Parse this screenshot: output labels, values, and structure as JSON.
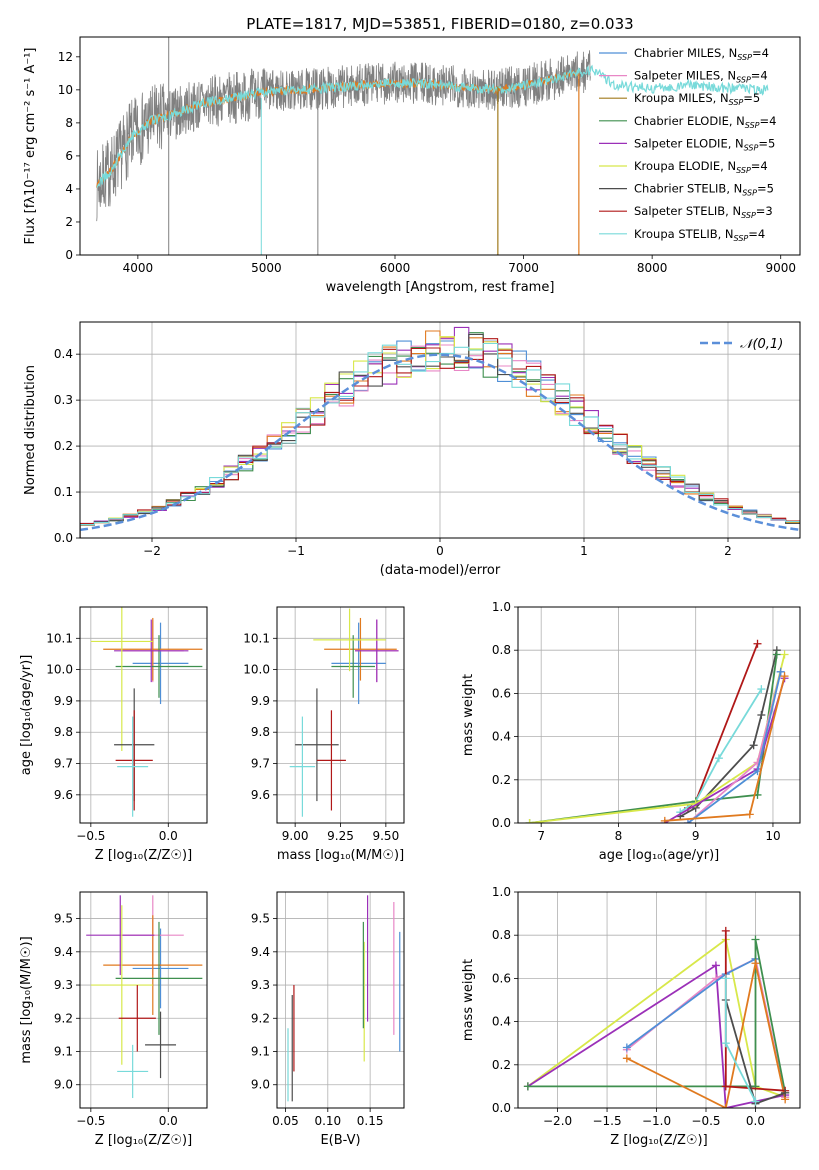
{
  "figure_title": "PLATE=1817, MJD=53851, FIBERID=0180, z=0.033",
  "colors": {
    "chabrier_miles": "#4f8fd6",
    "salpeter_miles": "#e887c6",
    "kroupa_miles": "#a07a1c",
    "chabrier_elodie": "#3f8f4f",
    "salpeter_elodie": "#9b30b8",
    "kroupa_elodie": "#d8e84a",
    "chabrier_stelib": "#4d4d4d",
    "salpeter_stelib": "#b01818",
    "kroupa_stelib": "#78dada",
    "orange": "#e07a1f",
    "lime": "#c8e84a",
    "data_grey": "#808080",
    "gauss": "#5b8fd9"
  },
  "chart_data": [
    {
      "type": "line",
      "title": "PLATE=1817, MJD=53851, FIBERID=0180, z=0.033",
      "xlabel": "wavelength [Angstrom, rest frame]",
      "ylabel": "Flux [fλ10⁻¹⁷ erg cm⁻² s⁻¹ A⁻¹]",
      "xlim": [
        3550,
        9150
      ],
      "ylim": [
        0,
        13.2
      ],
      "xticks": [
        "4000",
        "5000",
        "6000",
        "7000",
        "8000",
        "9000"
      ],
      "yticks": [
        "0",
        "2",
        "4",
        "6",
        "8",
        "10",
        "12"
      ],
      "legend_position": "top-right",
      "legend": [
        {
          "label": "Chabrier MILES, N",
          "sub": "SSP",
          "tail": "=4"
        },
        {
          "label": "Salpeter MILES, N",
          "sub": "SSP",
          "tail": "=4"
        },
        {
          "label": "Kroupa MILES, N",
          "sub": "SSP",
          "tail": "=5"
        },
        {
          "label": "Chabrier ELODIE, N",
          "sub": "SSP",
          "tail": "=4"
        },
        {
          "label": "Salpeter ELODIE, N",
          "sub": "SSP",
          "tail": "=5"
        },
        {
          "label": "Kroupa ELODIE, N",
          "sub": "SSP",
          "tail": "=4"
        },
        {
          "label": "Chabrier STELIB, N",
          "sub": "SSP",
          "tail": "=5"
        },
        {
          "label": "Salpeter STELIB, N",
          "sub": "SSP",
          "tail": "=3"
        },
        {
          "label": "Kroupa STELIB, N",
          "sub": "SSP",
          "tail": "=4"
        }
      ],
      "continuum": [
        [
          3680,
          4.2
        ],
        [
          3800,
          5.2
        ],
        [
          3950,
          7.2
        ],
        [
          4100,
          8.1
        ],
        [
          4300,
          8.6
        ],
        [
          4500,
          9.2
        ],
        [
          4800,
          9.6
        ],
        [
          5000,
          9.9
        ],
        [
          5300,
          10.0
        ],
        [
          5600,
          10.2
        ],
        [
          5900,
          10.4
        ],
        [
          6200,
          10.4
        ],
        [
          6500,
          10.2
        ],
        [
          6800,
          10.0
        ],
        [
          7100,
          10.4
        ],
        [
          7400,
          11.0
        ],
        [
          7550,
          11.2
        ],
        [
          7700,
          10.3
        ],
        [
          8000,
          10.1
        ],
        [
          8300,
          10.3
        ],
        [
          8600,
          10.1
        ],
        [
          8900,
          10.0
        ],
        [
          9100,
          10.1
        ]
      ],
      "model_extent": {
        "data_end": 7520,
        "models_end": 8900,
        "stelib_end": 7430,
        "elodie_end": 6800
      },
      "notable_features": [
        {
          "name": "sharp drop",
          "x": 4960
        },
        {
          "name": "sharp drop",
          "x": 5400
        },
        {
          "name": "spike",
          "x": 4240
        }
      ]
    },
    {
      "type": "histogram",
      "xlabel": "(data-model)/error",
      "ylabel": "Normed distribution",
      "xlim": [
        -2.5,
        2.5
      ],
      "ylim": [
        0,
        0.47
      ],
      "xticks": [
        "−2",
        "−1",
        "0",
        "1",
        "2"
      ],
      "yticks": [
        "0.0",
        "0.1",
        "0.2",
        "0.3",
        "0.4"
      ],
      "legend_position": "top-right",
      "legend_label": "𝒩(0,1)",
      "reference_curve": {
        "name": "𝒩(0,1)",
        "mean": 0,
        "sigma": 1
      },
      "bin_width": 0.1,
      "bin_start": -2.5
    },
    {
      "type": "errorbar",
      "xlabel": "Z [log₁₀(Z/Z☉)]",
      "ylabel": "age  [log₁₀(age/yr)]",
      "xlim": [
        -0.57,
        0.25
      ],
      "ylim": [
        9.51,
        10.2
      ],
      "xticks": [
        "−0.5",
        "0.0"
      ],
      "yticks": [
        "9.6",
        "9.7",
        "9.8",
        "9.9",
        "10.0",
        "10.1"
      ],
      "points": [
        {
          "model": "chabrier_miles",
          "x": -0.05,
          "y": 10.02,
          "xerr": 0.18,
          "yerr": 0.13
        },
        {
          "model": "salpeter_miles",
          "x": -0.1,
          "y": 10.06,
          "xerr": 0.2,
          "yerr": 0.1
        },
        {
          "model": "orange",
          "x": -0.1,
          "y": 10.065,
          "xerr": 0.32,
          "yerr": 0.1
        },
        {
          "model": "chabrier_elodie",
          "x": -0.06,
          "y": 10.01,
          "xerr": 0.28,
          "yerr": 0.1
        },
        {
          "model": "salpeter_elodie",
          "x": -0.11,
          "y": 10.06,
          "xerr": 0.24,
          "yerr": 0.1
        },
        {
          "model": "kroupa_elodie",
          "x": -0.3,
          "y": 10.09,
          "xerr": 0.2,
          "yerr": 0.35
        },
        {
          "model": "chabrier_stelib",
          "x": -0.22,
          "y": 9.76,
          "xerr": 0.13,
          "yerr": 0.18
        },
        {
          "model": "salpeter_stelib",
          "x": -0.22,
          "y": 9.71,
          "xerr": 0.12,
          "yerr": 0.16
        },
        {
          "model": "kroupa_stelib",
          "x": -0.23,
          "y": 9.69,
          "xerr": 0.1,
          "yerr": 0.16
        }
      ]
    },
    {
      "type": "errorbar",
      "xlabel": "mass [log₁₀(M/M☉)]",
      "ylabel": "",
      "xlim": [
        8.9,
        9.6
      ],
      "ylim": [
        9.51,
        10.2
      ],
      "xticks": [
        "9.00",
        "9.25",
        "9.50"
      ],
      "yticks": [
        "9.6",
        "9.7",
        "9.8",
        "9.9",
        "10.0",
        "10.1"
      ],
      "points": [
        {
          "model": "chabrier_miles",
          "x": 9.35,
          "y": 10.02,
          "xerr": 0.15,
          "yerr": 0.13
        },
        {
          "model": "salpeter_miles",
          "x": 9.45,
          "y": 10.06,
          "xerr": 0.12,
          "yerr": 0.1
        },
        {
          "model": "orange",
          "x": 9.36,
          "y": 10.065,
          "xerr": 0.2,
          "yerr": 0.1
        },
        {
          "model": "chabrier_elodie",
          "x": 9.32,
          "y": 10.01,
          "xerr": 0.12,
          "yerr": 0.1
        },
        {
          "model": "salpeter_elodie",
          "x": 9.45,
          "y": 10.06,
          "xerr": 0.12,
          "yerr": 0.1
        },
        {
          "model": "kroupa_elodie",
          "x": 9.3,
          "y": 10.095,
          "xerr": 0.2,
          "yerr": 0.1
        },
        {
          "model": "chabrier_stelib",
          "x": 9.12,
          "y": 9.76,
          "xerr": 0.12,
          "yerr": 0.18
        },
        {
          "model": "salpeter_stelib",
          "x": 9.2,
          "y": 9.71,
          "xerr": 0.08,
          "yerr": 0.16
        },
        {
          "model": "kroupa_stelib",
          "x": 9.04,
          "y": 9.69,
          "xerr": 0.07,
          "yerr": 0.16
        }
      ]
    },
    {
      "type": "line",
      "xlabel": "age  [log₁₀(age/yr)]",
      "ylabel": "mass weight",
      "xlim": [
        6.7,
        10.35
      ],
      "ylim": [
        0,
        1.0
      ],
      "xticks": [
        "7",
        "8",
        "9",
        "10"
      ],
      "yticks": [
        "0.0",
        "0.2",
        "0.4",
        "0.6",
        "0.8",
        "1.0"
      ],
      "series": [
        {
          "model": "salpeter_stelib",
          "x": [
            8.9,
            9.0,
            9.8
          ],
          "y": [
            0.07,
            0.1,
            0.83
          ]
        },
        {
          "model": "kroupa_stelib",
          "x": [
            8.8,
            9.0,
            9.3,
            9.85
          ],
          "y": [
            0.05,
            0.1,
            0.3,
            0.62
          ]
        },
        {
          "model": "chabrier_stelib",
          "x": [
            8.8,
            9.0,
            9.75,
            9.85,
            10.05
          ],
          "y": [
            0.03,
            0.07,
            0.36,
            0.5,
            0.8
          ]
        },
        {
          "model": "chabrier_elodie",
          "x": [
            6.85,
            9.0,
            9.8,
            10.05
          ],
          "y": [
            0.0,
            0.1,
            0.13,
            0.78
          ]
        },
        {
          "model": "kroupa_elodie",
          "x": [
            6.85,
            9.0,
            9.8,
            10.15
          ],
          "y": [
            0.0,
            0.09,
            0.28,
            0.78
          ]
        },
        {
          "model": "salpeter_elodie",
          "x": [
            8.6,
            9.8,
            10.15
          ],
          "y": [
            0.0,
            0.25,
            0.67
          ]
        },
        {
          "model": "salpeter_miles",
          "x": [
            8.9,
            9.8,
            10.1
          ],
          "y": [
            0.0,
            0.28,
            0.7
          ]
        },
        {
          "model": "chabrier_miles",
          "x": [
            8.9,
            9.8,
            10.1
          ],
          "y": [
            0.0,
            0.24,
            0.7
          ]
        },
        {
          "model": "orange",
          "x": [
            8.6,
            9.7,
            10.15
          ],
          "y": [
            0.01,
            0.04,
            0.68
          ]
        }
      ]
    },
    {
      "type": "errorbar",
      "xlabel": "Z [log₁₀(Z/Z☉)]",
      "ylabel": "mass [log₁₀(M/M☉)]",
      "xlim": [
        -0.57,
        0.25
      ],
      "ylim": [
        8.93,
        9.58
      ],
      "xticks": [
        "−0.5",
        "0.0"
      ],
      "yticks": [
        "9.0",
        "9.1",
        "9.2",
        "9.3",
        "9.4",
        "9.5"
      ],
      "points": [
        {
          "model": "chabrier_miles",
          "x": -0.05,
          "y": 9.35,
          "xerr": 0.18,
          "yerr": 0.12
        },
        {
          "model": "salpeter_miles",
          "x": -0.1,
          "y": 9.45,
          "xerr": 0.2,
          "yerr": 0.12
        },
        {
          "model": "orange",
          "x": -0.1,
          "y": 9.36,
          "xerr": 0.32,
          "yerr": 0.15
        },
        {
          "model": "chabrier_elodie",
          "x": -0.06,
          "y": 9.32,
          "xerr": 0.28,
          "yerr": 0.17
        },
        {
          "model": "salpeter_elodie",
          "x": -0.31,
          "y": 9.45,
          "xerr": 0.22,
          "yerr": 0.12
        },
        {
          "model": "kroupa_elodie",
          "x": -0.3,
          "y": 9.3,
          "xerr": 0.2,
          "yerr": 0.24
        },
        {
          "model": "chabrier_stelib",
          "x": -0.05,
          "y": 9.12,
          "xerr": 0.1,
          "yerr": 0.1
        },
        {
          "model": "salpeter_stelib",
          "x": -0.2,
          "y": 9.2,
          "xerr": 0.12,
          "yerr": 0.1
        },
        {
          "model": "kroupa_stelib",
          "x": -0.23,
          "y": 9.04,
          "xerr": 0.1,
          "yerr": 0.08
        }
      ]
    },
    {
      "type": "errorbar",
      "xlabel": "E(B-V)",
      "ylabel": "",
      "xlim": [
        0.04,
        0.19
      ],
      "ylim": [
        8.93,
        9.58
      ],
      "xticks": [
        "0.05",
        "0.10",
        "0.15"
      ],
      "yticks": [
        "9.0",
        "9.1",
        "9.2",
        "9.3",
        "9.4",
        "9.5"
      ],
      "points": [
        {
          "model": "chabrier_miles",
          "x": 0.185,
          "y": 9.28,
          "yerr": 0.18
        },
        {
          "model": "salpeter_miles",
          "x": 0.178,
          "y": 9.35,
          "yerr": 0.2
        },
        {
          "model": "salpeter_elodie",
          "x": 0.147,
          "y": 9.38,
          "yerr": 0.19
        },
        {
          "model": "kroupa_elodie",
          "x": 0.143,
          "y": 9.25,
          "yerr": 0.18
        },
        {
          "model": "chabrier_elodie",
          "x": 0.142,
          "y": 9.33,
          "yerr": 0.16
        },
        {
          "model": "chabrier_stelib",
          "x": 0.058,
          "y": 9.11,
          "yerr": 0.16
        },
        {
          "model": "salpeter_stelib",
          "x": 0.06,
          "y": 9.17,
          "yerr": 0.13
        },
        {
          "model": "kroupa_stelib",
          "x": 0.053,
          "y": 9.06,
          "yerr": 0.11
        }
      ]
    },
    {
      "type": "line",
      "xlabel": "Z [log₁₀(Z/Z☉)]",
      "ylabel": "mass weight",
      "xlim": [
        -2.4,
        0.45
      ],
      "ylim": [
        0,
        1.0
      ],
      "xticks": [
        "−2.0",
        "−1.5",
        "−1.0",
        "−0.5",
        "0.0"
      ],
      "yticks": [
        "0.0",
        "0.2",
        "0.4",
        "0.6",
        "0.8",
        "1.0"
      ],
      "series": [
        {
          "model": "kroupa_elodie",
          "x": [
            -2.3,
            -0.3,
            0.0,
            0.3
          ],
          "y": [
            0.1,
            0.78,
            0.1,
            0.05
          ]
        },
        {
          "model": "salpeter_elodie",
          "x": [
            -2.3,
            -0.4,
            -0.3,
            0.3
          ],
          "y": [
            0.1,
            0.66,
            0.0,
            0.06
          ]
        },
        {
          "model": "salpeter_miles",
          "x": [
            -1.3,
            -0.4,
            0.0,
            0.3
          ],
          "y": [
            0.27,
            0.6,
            0.69,
            0.05
          ]
        },
        {
          "model": "chabrier_miles",
          "x": [
            -1.3,
            -0.3,
            0.0
          ],
          "y": [
            0.28,
            0.62,
            0.69
          ]
        },
        {
          "model": "chabrier_elodie",
          "x": [
            -2.3,
            0.0,
            0.0,
            0.3
          ],
          "y": [
            0.1,
            0.1,
            0.78,
            0.07
          ]
        },
        {
          "model": "orange",
          "x": [
            -1.3,
            -0.3,
            0.0,
            0.3
          ],
          "y": [
            0.23,
            0.0,
            0.67,
            0.04
          ]
        },
        {
          "model": "salpeter_stelib",
          "x": [
            -0.3,
            -0.3,
            0.3
          ],
          "y": [
            0.82,
            0.1,
            0.08
          ]
        },
        {
          "model": "chabrier_stelib",
          "x": [
            -0.3,
            0.0,
            0.3
          ],
          "y": [
            0.5,
            0.02,
            0.07
          ]
        },
        {
          "model": "kroupa_stelib",
          "x": [
            -0.3,
            -0.3,
            0.0
          ],
          "y": [
            0.6,
            0.3,
            0.03
          ]
        }
      ]
    }
  ]
}
